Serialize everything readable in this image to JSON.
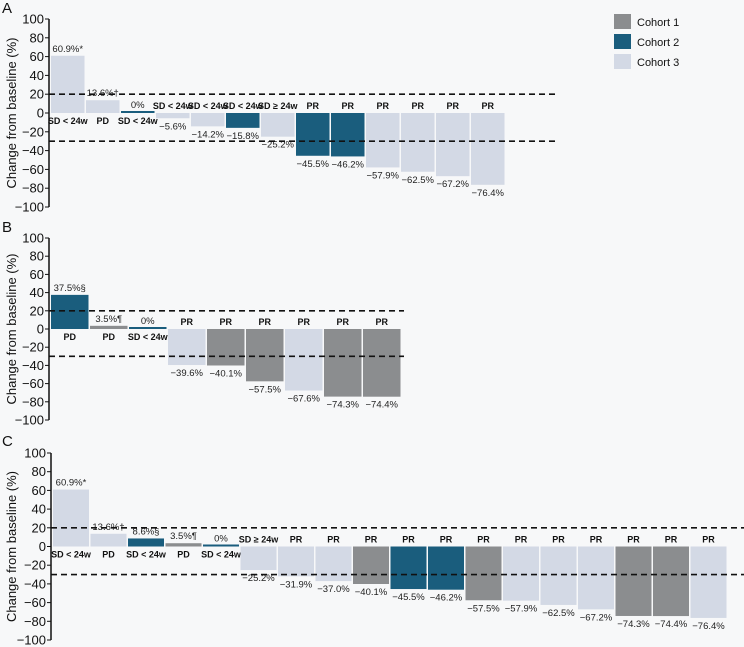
{
  "legend": [
    {
      "name": "Cohort 1",
      "color": "#8b8d8f"
    },
    {
      "name": "Cohort 2",
      "color": "#1a5d7d"
    },
    {
      "name": "Cohort 3",
      "color": "#d3d9e5"
    }
  ],
  "chart_data": [
    {
      "type": "bar",
      "panel": "A",
      "ylabel": "Change from baseline (%)",
      "ylim": [
        -100,
        100
      ],
      "yticks": [
        100,
        80,
        60,
        40,
        20,
        0,
        -20,
        -40,
        -60,
        -80,
        -100
      ],
      "reference_lines": [
        20,
        -30
      ],
      "bars": [
        {
          "value": 60.9,
          "label": "60.9%*",
          "status": "SD < 24w",
          "cohort": 3
        },
        {
          "value": 13.6,
          "label": "13.6%†",
          "status": "PD",
          "cohort": 3
        },
        {
          "value": 0,
          "label": "0%",
          "status": "SD < 24w",
          "cohort": 2
        },
        {
          "value": -5.6,
          "label": "−5.6%",
          "status": "SD < 24w",
          "cohort": 3
        },
        {
          "value": -14.2,
          "label": "−14.2%",
          "status": "SD < 24w",
          "cohort": 3
        },
        {
          "value": -15.8,
          "label": "−15.8%",
          "status": "SD < 24w",
          "cohort": 2
        },
        {
          "value": -25.2,
          "label": "−25.2%",
          "status": "SD ≥ 24w",
          "cohort": 3
        },
        {
          "value": -45.5,
          "label": "−45.5%",
          "status": "PR",
          "cohort": 2
        },
        {
          "value": -46.2,
          "label": "−46.2%",
          "status": "PR",
          "cohort": 2
        },
        {
          "value": -57.9,
          "label": "−57.9%",
          "status": "PR",
          "cohort": 3
        },
        {
          "value": -62.5,
          "label": "−62.5%",
          "status": "PR",
          "cohort": 3
        },
        {
          "value": -67.2,
          "label": "−67.2%",
          "status": "PR",
          "cohort": 3
        },
        {
          "value": -76.4,
          "label": "−76.4%",
          "status": "PR",
          "cohort": 3
        }
      ]
    },
    {
      "type": "bar",
      "panel": "B",
      "ylabel": "Change from baseline (%)",
      "ylim": [
        -100,
        100
      ],
      "yticks": [
        100,
        80,
        60,
        40,
        20,
        0,
        -20,
        -40,
        -60,
        -80,
        -100
      ],
      "reference_lines": [
        20,
        -30
      ],
      "bars": [
        {
          "value": 37.5,
          "label": "37.5%§",
          "status": "PD",
          "cohort": 2
        },
        {
          "value": 3.5,
          "label": "3.5%¶",
          "status": "PD",
          "cohort": 1
        },
        {
          "value": 0,
          "label": "0%",
          "status": "SD < 24w",
          "cohort": 2
        },
        {
          "value": -39.6,
          "label": "−39.6%",
          "status": "PR",
          "cohort": 3
        },
        {
          "value": -40.1,
          "label": "−40.1%",
          "status": "PR",
          "cohort": 1
        },
        {
          "value": -57.5,
          "label": "−57.5%",
          "status": "PR",
          "cohort": 1
        },
        {
          "value": -67.6,
          "label": "−67.6%",
          "status": "PR",
          "cohort": 3
        },
        {
          "value": -74.3,
          "label": "−74.3%",
          "status": "PR",
          "cohort": 1
        },
        {
          "value": -74.4,
          "label": "−74.4%",
          "status": "PR",
          "cohort": 1
        }
      ]
    },
    {
      "type": "bar",
      "panel": "C",
      "ylabel": "Change from baseline (%)",
      "ylim": [
        -100,
        100
      ],
      "yticks": [
        100,
        80,
        60,
        40,
        20,
        0,
        -20,
        -40,
        -60,
        -80,
        -100
      ],
      "reference_lines": [
        20,
        -30
      ],
      "bars": [
        {
          "value": 60.9,
          "label": "60.9%*",
          "status": "SD < 24w",
          "cohort": 3
        },
        {
          "value": 13.6,
          "label": "13.6%†",
          "status": "PD",
          "cohort": 3
        },
        {
          "value": 8.6,
          "label": "8.6%§",
          "status": "SD < 24w",
          "cohort": 2
        },
        {
          "value": 3.5,
          "label": "3.5%¶",
          "status": "PD",
          "cohort": 1
        },
        {
          "value": 0,
          "label": "0%",
          "status": "SD < 24w",
          "cohort": 2
        },
        {
          "value": -25.2,
          "label": "−25.2%",
          "status": "SD ≥ 24w",
          "cohort": 3
        },
        {
          "value": -31.9,
          "label": "−31.9%",
          "status": "PR",
          "cohort": 3
        },
        {
          "value": -37.0,
          "label": "−37.0%",
          "status": "PR",
          "cohort": 3
        },
        {
          "value": -40.1,
          "label": "−40.1%",
          "status": "PR",
          "cohort": 1
        },
        {
          "value": -45.5,
          "label": "−45.5%",
          "status": "PR",
          "cohort": 2
        },
        {
          "value": -46.2,
          "label": "−46.2%",
          "status": "PR",
          "cohort": 2
        },
        {
          "value": -57.5,
          "label": "−57.5%",
          "status": "PR",
          "cohort": 1
        },
        {
          "value": -57.9,
          "label": "−57.9%",
          "status": "PR",
          "cohort": 3
        },
        {
          "value": -62.5,
          "label": "−62.5%",
          "status": "PR",
          "cohort": 3
        },
        {
          "value": -67.2,
          "label": "−67.2%",
          "status": "PR",
          "cohort": 3
        },
        {
          "value": -74.3,
          "label": "−74.3%",
          "status": "PR",
          "cohort": 1
        },
        {
          "value": -74.4,
          "label": "−74.4%",
          "status": "PR",
          "cohort": 1
        },
        {
          "value": -76.4,
          "label": "−76.4%",
          "status": "PR",
          "cohort": 3
        }
      ]
    }
  ]
}
